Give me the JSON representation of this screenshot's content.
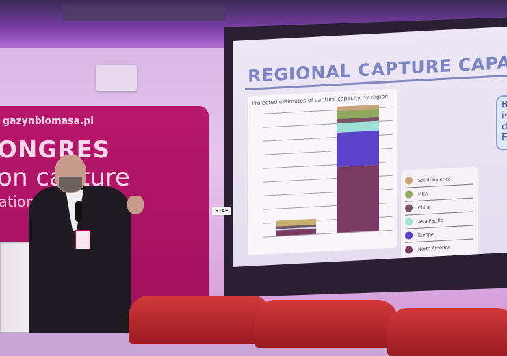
{
  "banner": {
    "url": "gazynbiomasa.pl",
    "line1": "ONGRES",
    "line2": "on capture",
    "line3": "ation        e"
  },
  "slide": {
    "title": "REGIONAL CAPTURE CAPAC",
    "chart_title": "Projected estimates of capture capacity by region",
    "legend": [
      {
        "label": "South America",
        "color": "#c8a47a"
      },
      {
        "label": "MEA",
        "color": "#8faa5e"
      },
      {
        "label": "China",
        "color": "#7b5566"
      },
      {
        "label": "Asia Pacific",
        "color": "#9ee0d6"
      },
      {
        "label": "Europe",
        "color": "#5a43c8"
      },
      {
        "label": "North America",
        "color": "#7a3a63"
      }
    ],
    "callout": "B\nis\nd\nE"
  },
  "stage_label": "STAF"
}
